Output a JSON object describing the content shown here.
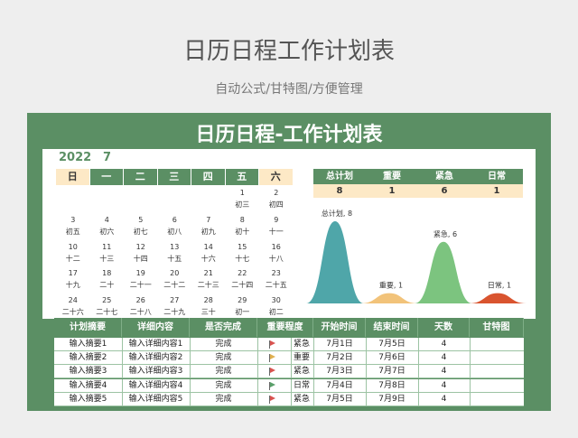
{
  "header": {
    "title": "日历日程工作计划表",
    "subtitle": "自动公式/甘特图/方便管理"
  },
  "panel": {
    "title": "日历日程-工作计划表"
  },
  "calendar": {
    "year": "2022",
    "month": "7",
    "weekdays": [
      "日",
      "一",
      "二",
      "三",
      "四",
      "五",
      "六"
    ],
    "weeks": [
      [
        null,
        null,
        null,
        null,
        null,
        {
          "day": 1,
          "lunar": "初三"
        },
        {
          "day": 2,
          "lunar": "初四"
        }
      ],
      [
        {
          "day": 3,
          "lunar": "初五"
        },
        {
          "day": 4,
          "lunar": "初六"
        },
        {
          "day": 5,
          "lunar": "初七"
        },
        {
          "day": 6,
          "lunar": "初八"
        },
        {
          "day": 7,
          "lunar": "初九"
        },
        {
          "day": 8,
          "lunar": "初十"
        },
        {
          "day": 9,
          "lunar": "十一"
        }
      ],
      [
        {
          "day": 10,
          "lunar": "十二"
        },
        {
          "day": 11,
          "lunar": "十三"
        },
        {
          "day": 12,
          "lunar": "十四"
        },
        {
          "day": 13,
          "lunar": "十五"
        },
        {
          "day": 14,
          "lunar": "十六"
        },
        {
          "day": 15,
          "lunar": "十七"
        },
        {
          "day": 16,
          "lunar": "十八"
        }
      ],
      [
        {
          "day": 17,
          "lunar": "十九"
        },
        {
          "day": 18,
          "lunar": "二十"
        },
        {
          "day": 19,
          "lunar": "二十一"
        },
        {
          "day": 20,
          "lunar": "二十二"
        },
        {
          "day": 21,
          "lunar": "二十三"
        },
        {
          "day": 22,
          "lunar": "二十四"
        },
        {
          "day": 23,
          "lunar": "二十五"
        }
      ],
      [
        {
          "day": 24,
          "lunar": "二十六"
        },
        {
          "day": 25,
          "lunar": "二十七"
        },
        {
          "day": 26,
          "lunar": "二十八"
        },
        {
          "day": 27,
          "lunar": "二十九"
        },
        {
          "day": 28,
          "lunar": "三十"
        },
        {
          "day": 29,
          "lunar": "初一"
        },
        {
          "day": 30,
          "lunar": "初二"
        }
      ]
    ]
  },
  "summary": {
    "headers": [
      "总计划",
      "重要",
      "紧急",
      "日常"
    ],
    "values": [
      8,
      1,
      6,
      1
    ]
  },
  "chart": {
    "type": "area",
    "labels": [
      "总计划, 8",
      "重要, 1",
      "紧急, 6",
      "日常, 1"
    ],
    "colors": [
      "#4fa6a9",
      "#f2c37a",
      "#7cc47f",
      "#d9542f"
    ]
  },
  "table": {
    "columns": [
      "计划摘要",
      "详细内容",
      "是否完成",
      "重要程度",
      "开始时间",
      "结束时间",
      "天数",
      "甘特图"
    ],
    "rows": [
      [
        "输入摘要1",
        "输入详细内容1",
        "完成",
        "紧急",
        "7月1日",
        "7月5日",
        4
      ],
      [
        "输入摘要2",
        "输入详细内容2",
        "完成",
        "重要",
        "7月2日",
        "7月6日",
        4
      ],
      [
        "输入摘要3",
        "输入详细内容3",
        "完成",
        "紧急",
        "7月3日",
        "7月7日",
        4
      ],
      [
        "输入摘要4",
        "输入详细内容4",
        "完成",
        "日常",
        "7月4日",
        "7月8日",
        4
      ],
      [
        "输入摘要5",
        "输入详细内容5",
        "完成",
        "紧急",
        "7月5日",
        "7月9日",
        4
      ]
    ],
    "flag_colors": [
      "#d9534f",
      "#e0b050",
      "#d9534f",
      "#5aa06a",
      "#d9534f"
    ]
  }
}
